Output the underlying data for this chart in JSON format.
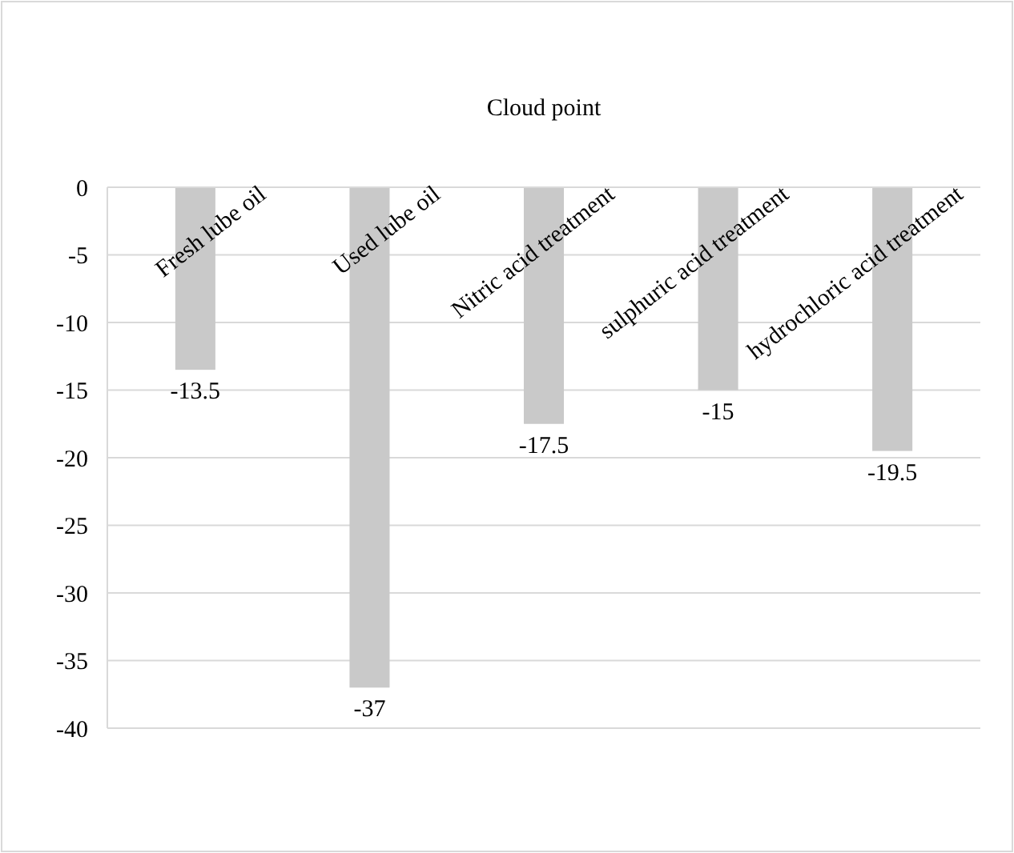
{
  "chart_data": {
    "type": "bar",
    "title": "Cloud point",
    "categories": [
      "Fresh lube oil",
      "Used lube oil",
      "Nitric acid treatment",
      "sulphuric acid treatment",
      "hydrochloric acid treatment"
    ],
    "values": [
      -13.5,
      -37,
      -17.5,
      -15,
      -19.5
    ],
    "color": "#c9c9c9",
    "ylim": [
      -40,
      0
    ],
    "yticks": [
      -40,
      -35,
      -30,
      -25,
      -20,
      -15,
      -10,
      -5,
      0
    ],
    "grid": "y",
    "data_labels": true
  }
}
